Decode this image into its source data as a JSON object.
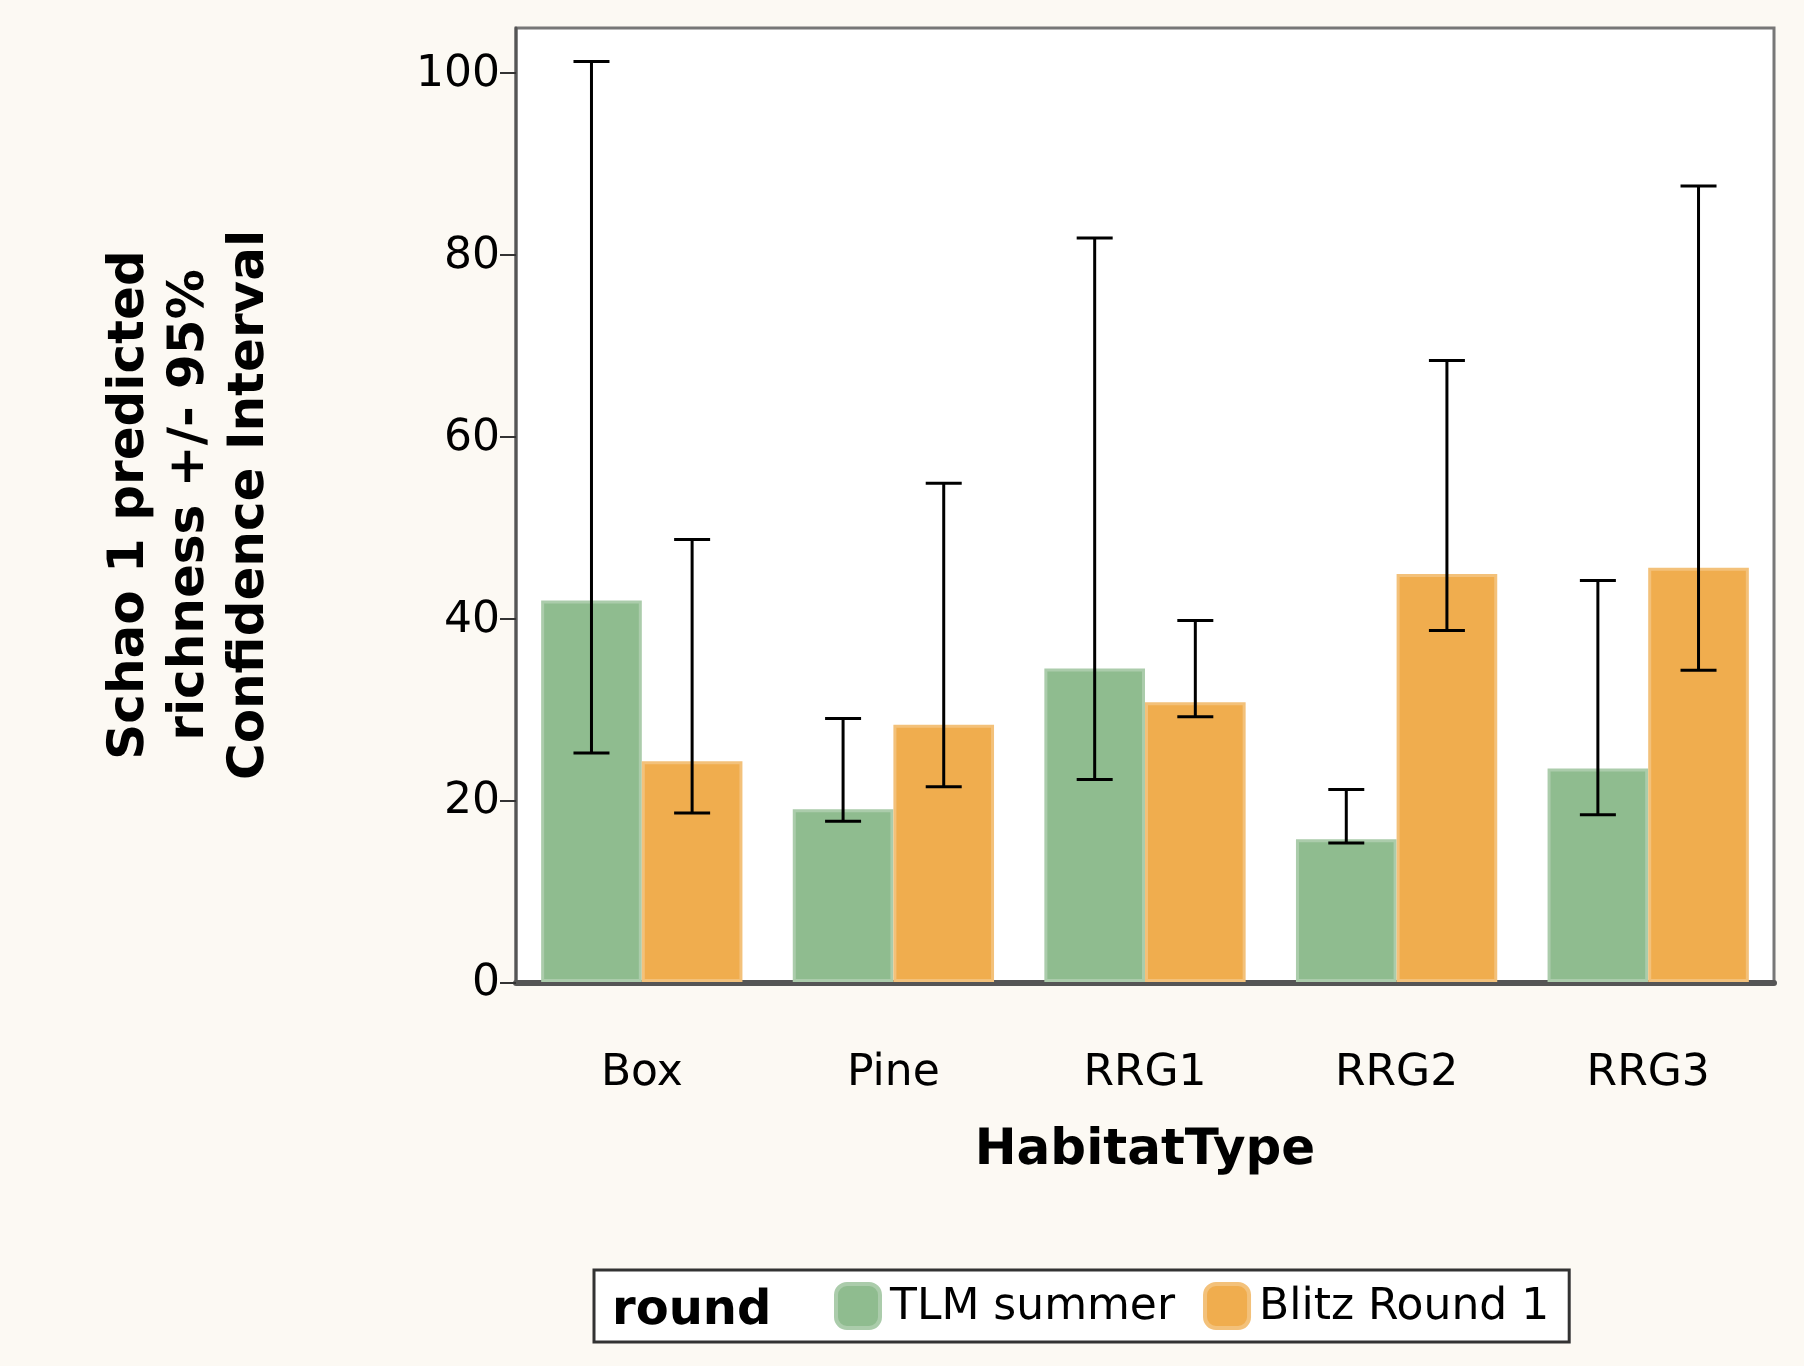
{
  "chart_data": {
    "type": "bar",
    "xlabel": "HabitatType",
    "ylabel": "Schao 1 predicted richness +/- 95% Confidence Interval",
    "legend_title": "round",
    "legend": "bottom",
    "grid": false,
    "categories": [
      "Box",
      "Pine",
      "RRG1",
      "RRG2",
      "RRG3"
    ],
    "ylim": [
      0,
      105
    ],
    "yticks": [
      0,
      20,
      40,
      60,
      80,
      100
    ],
    "series": [
      {
        "name": "TLM summer",
        "color": "#8fbc8f",
        "values": [
          42,
          19,
          34.5,
          15.7,
          23.5
        ],
        "errors": [
          [
            25.2,
            101.3
          ],
          [
            17.7,
            29
          ],
          [
            22.3,
            81.9
          ],
          [
            15.3,
            21.2
          ],
          [
            18.4,
            44.2
          ]
        ]
      },
      {
        "name": "Blitz Round 1",
        "color": "#f0ad4e",
        "values": [
          24.3,
          28.3,
          30.8,
          44.9,
          45.6
        ],
        "errors": [
          [
            18.6,
            48.7
          ],
          [
            21.5,
            54.9
          ],
          [
            29.2,
            39.8
          ],
          [
            38.7,
            68.4
          ],
          [
            34.3,
            87.6
          ]
        ]
      }
    ]
  }
}
